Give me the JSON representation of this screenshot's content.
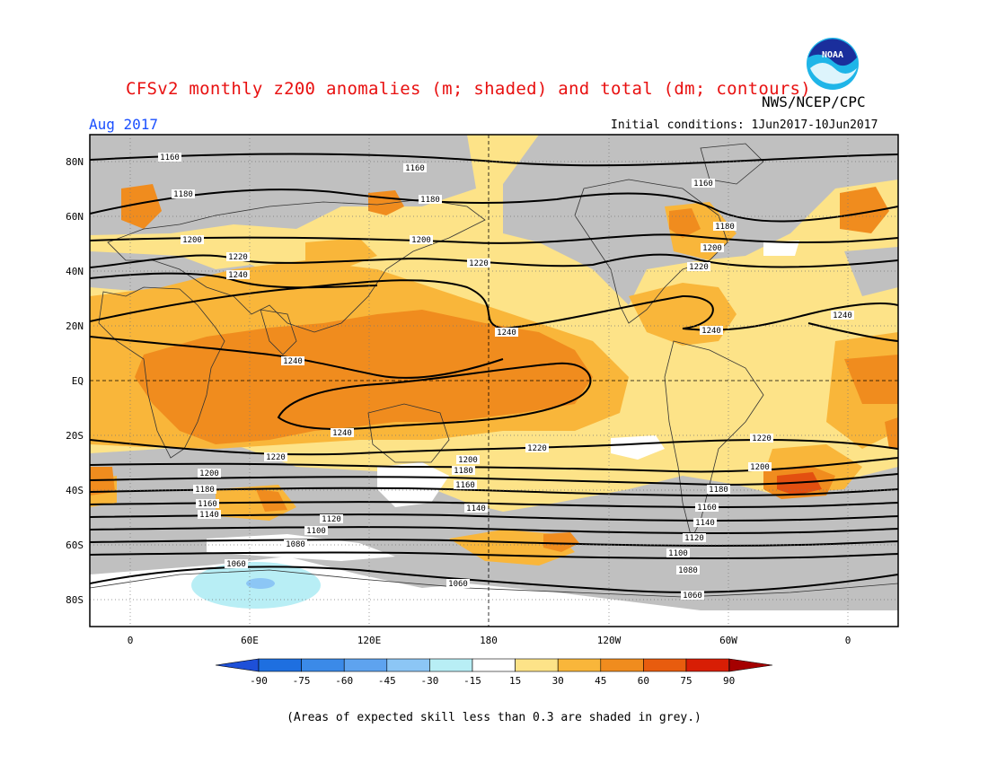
{
  "title": "CFSv2 monthly z200 anomalies (m; shaded) and total (dm; contours)",
  "agency": "NWS/NCEP/CPC",
  "logo_text": "NOAA",
  "forecast_month": "Aug 2017",
  "initial_conditions": "Initial conditions: 1Jun2017-10Jun2017",
  "footnote": "(Areas of expected skill less than 0.3 are shaded in grey.)",
  "lat_labels": [
    "80N",
    "60N",
    "40N",
    "20N",
    "EQ",
    "20S",
    "40S",
    "60S",
    "80S"
  ],
  "lon_labels": [
    "0",
    "60E",
    "120E",
    "180",
    "120W",
    "60W",
    "0"
  ],
  "colorbar": {
    "labels": [
      "-90",
      "-75",
      "-60",
      "-45",
      "-30",
      "-15",
      "15",
      "30",
      "45",
      "60",
      "75",
      "90"
    ],
    "colors": [
      "#1e6fe0",
      "#3b8ae8",
      "#5ea3ef",
      "#8cc6f5",
      "#b8eef5",
      "#ffffff",
      "#fde388",
      "#f9b63a",
      "#f08c1e",
      "#e85c0e",
      "#d81e05",
      "#a50000"
    ],
    "end_low": "#1e50d8",
    "end_high": "#a50000"
  },
  "skill_grey": "#c0c0c0",
  "contour_labels": [
    "1160",
    "1180",
    "1200",
    "1220",
    "1240",
    "1140",
    "1120",
    "1100",
    "1080",
    "1060"
  ]
}
